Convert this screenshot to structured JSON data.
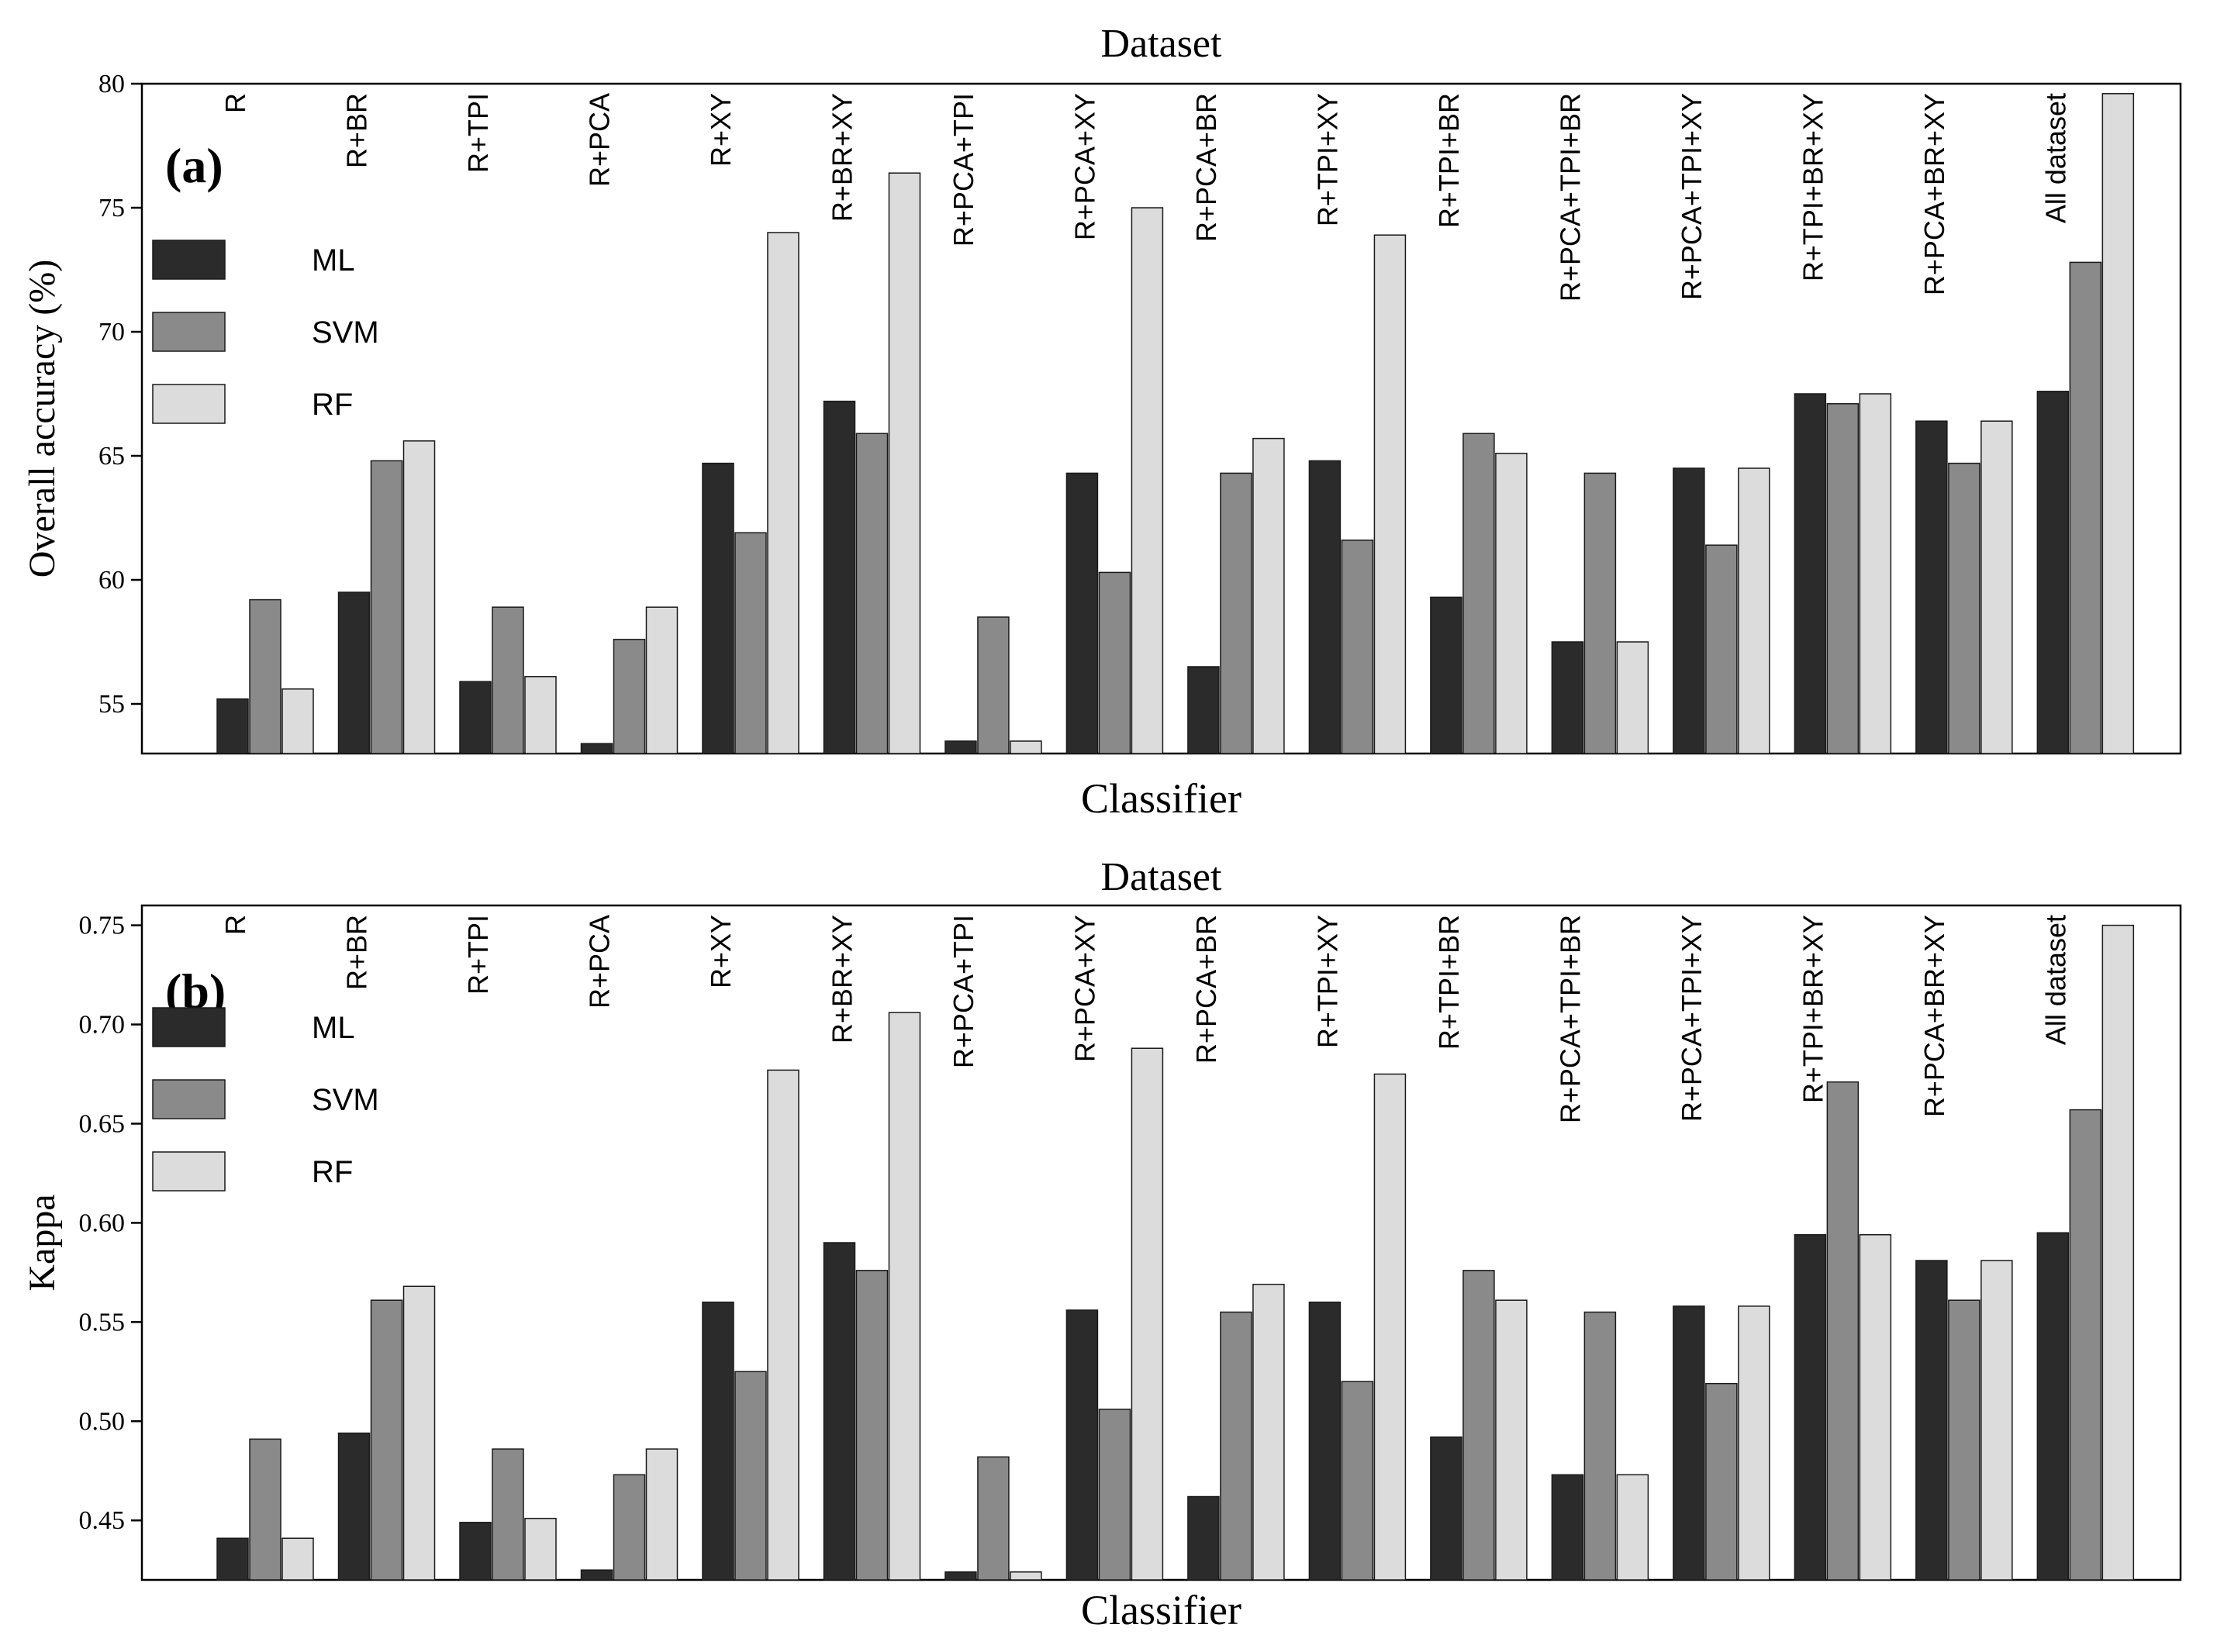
{
  "colors": {
    "ML": "#2b2b2b",
    "SVM": "#8a8a8a",
    "RF": "#dcdcdc",
    "axis": "#000000",
    "background": "#ffffff"
  },
  "chart_data": [
    {
      "type": "bar",
      "panel_label": "(a)",
      "title": "Dataset",
      "xlabel": "Classifier",
      "ylabel": "Overall accuracy (%)",
      "ylim": [
        53,
        80
      ],
      "yticks": [
        "55",
        "60",
        "65",
        "70",
        "75",
        "80"
      ],
      "ytick_values": [
        55,
        60,
        65,
        70,
        75,
        80
      ],
      "legend_position": "top-left",
      "categories": [
        "R",
        "R+BR",
        "R+TPI",
        "R+PCA",
        "R+XY",
        "R+BR+XY",
        "R+PCA+TPI",
        "R+PCA+XY",
        "R+PCA+BR",
        "R+TPI+XY",
        "R+TPI+BR",
        "R+PCA+TPI+BR",
        "R+PCA+TPI+XY",
        "R+TPI+BR+XY",
        "R+PCA+BR+XY",
        "All dataset"
      ],
      "series": [
        {
          "name": "ML",
          "values": [
            55.2,
            59.5,
            55.9,
            53.4,
            64.7,
            67.2,
            53.5,
            64.3,
            56.5,
            64.8,
            59.3,
            57.5,
            64.5,
            67.5,
            66.4,
            67.6
          ]
        },
        {
          "name": "SVM",
          "values": [
            59.2,
            64.8,
            58.9,
            57.6,
            61.9,
            65.9,
            58.5,
            60.3,
            64.3,
            61.6,
            65.9,
            64.3,
            61.4,
            67.1,
            64.7,
            72.8
          ]
        },
        {
          "name": "RF",
          "values": [
            55.6,
            65.6,
            56.1,
            58.9,
            74.0,
            76.4,
            53.5,
            75.0,
            65.7,
            73.9,
            65.1,
            57.5,
            64.5,
            67.5,
            66.4,
            79.6
          ]
        }
      ]
    },
    {
      "type": "bar",
      "panel_label": "(b)",
      "title": "Dataset",
      "xlabel": "Classifier",
      "ylabel": "Kappa",
      "ylim": [
        0.42,
        0.76
      ],
      "yticks": [
        "0.45",
        "0.50",
        "0.55",
        "0.60",
        "0.65",
        "0.70",
        "0.75"
      ],
      "ytick_values": [
        0.45,
        0.5,
        0.55,
        0.6,
        0.65,
        0.7,
        0.75
      ],
      "legend_position": "top-left",
      "categories": [
        "R",
        "R+BR",
        "R+TPI",
        "R+PCA",
        "R+XY",
        "R+BR+XY",
        "R+PCA+TPI",
        "R+PCA+XY",
        "R+PCA+BR",
        "R+TPI+XY",
        "R+TPI+BR",
        "R+PCA+TPI+BR",
        "R+PCA+TPI+XY",
        "R+TPI+BR+XY",
        "R+PCA+BR+XY",
        "All dataset"
      ],
      "series": [
        {
          "name": "ML",
          "values": [
            0.441,
            0.494,
            0.449,
            0.425,
            0.56,
            0.59,
            0.424,
            0.556,
            0.462,
            0.56,
            0.492,
            0.473,
            0.558,
            0.594,
            0.581,
            0.595
          ]
        },
        {
          "name": "SVM",
          "values": [
            0.491,
            0.561,
            0.486,
            0.473,
            0.525,
            0.576,
            0.482,
            0.506,
            0.555,
            0.52,
            0.576,
            0.555,
            0.519,
            0.671,
            0.561,
            0.657
          ]
        },
        {
          "name": "RF",
          "values": [
            0.441,
            0.568,
            0.451,
            0.486,
            0.677,
            0.706,
            0.424,
            0.688,
            0.569,
            0.675,
            0.561,
            0.473,
            0.558,
            0.594,
            0.581,
            0.75
          ]
        }
      ]
    }
  ]
}
